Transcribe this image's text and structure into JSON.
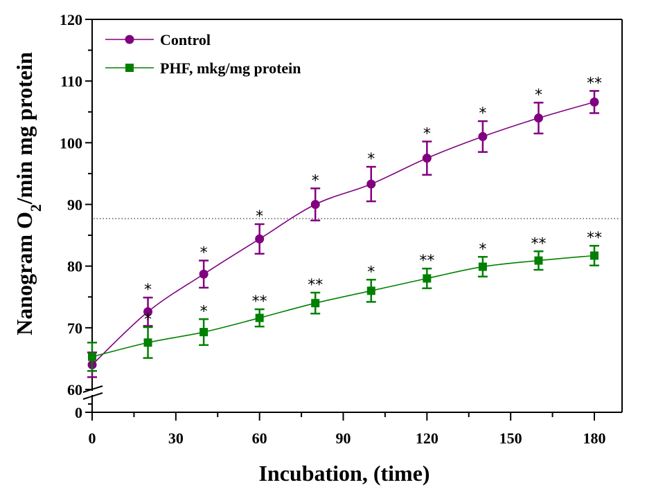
{
  "chart_data": {
    "type": "line",
    "title": "",
    "xlabel": "Incubation, (time)",
    "ylabel_main": "Nanogram O",
    "ylabel_sub": "2",
    "ylabel_rest": "/min mg protein",
    "xlim": [
      0,
      190
    ],
    "ylim": [
      60,
      120
    ],
    "y_break": {
      "lower_tick": 0,
      "upper_tick": 60
    },
    "x_ticks": [
      0,
      30,
      60,
      90,
      120,
      150,
      180
    ],
    "x_tick_labels": [
      "0",
      "30",
      "60",
      "90",
      "120",
      "150",
      "180"
    ],
    "y_ticks": [
      60,
      70,
      80,
      90,
      100,
      110,
      120
    ],
    "y_tick_labels": [
      "60",
      "70",
      "80",
      "90",
      "100",
      "110",
      "120"
    ],
    "y_break_label": "0",
    "reference_line": {
      "y": 87.7,
      "style": "dotted"
    },
    "legend_position": "top-left",
    "x": [
      0,
      20,
      40,
      60,
      80,
      100,
      120,
      140,
      160,
      180
    ],
    "series": [
      {
        "name": "Control",
        "color": "#800080",
        "marker": "circle",
        "values": [
          64.0,
          72.6,
          78.7,
          84.4,
          90.0,
          93.3,
          97.5,
          101.0,
          104.0,
          106.6
        ],
        "errors": [
          2.0,
          2.3,
          2.2,
          2.4,
          2.6,
          2.8,
          2.7,
          2.5,
          2.5,
          1.8
        ],
        "annotations": [
          "",
          "*",
          "*",
          "*",
          "*",
          "*",
          "*",
          "*",
          "*",
          "**"
        ]
      },
      {
        "name": "PHF, mkg/mg protein",
        "color": "#008000",
        "marker": "square",
        "values": [
          65.3,
          67.6,
          69.3,
          71.6,
          74.0,
          76.0,
          78.0,
          79.9,
          80.9,
          81.7
        ],
        "errors": [
          2.3,
          2.5,
          2.1,
          1.4,
          1.7,
          1.8,
          1.6,
          1.6,
          1.5,
          1.6
        ],
        "annotations": [
          "",
          "*",
          "*",
          "**",
          "**",
          "*",
          "**",
          "*",
          "**",
          "**"
        ]
      }
    ]
  }
}
